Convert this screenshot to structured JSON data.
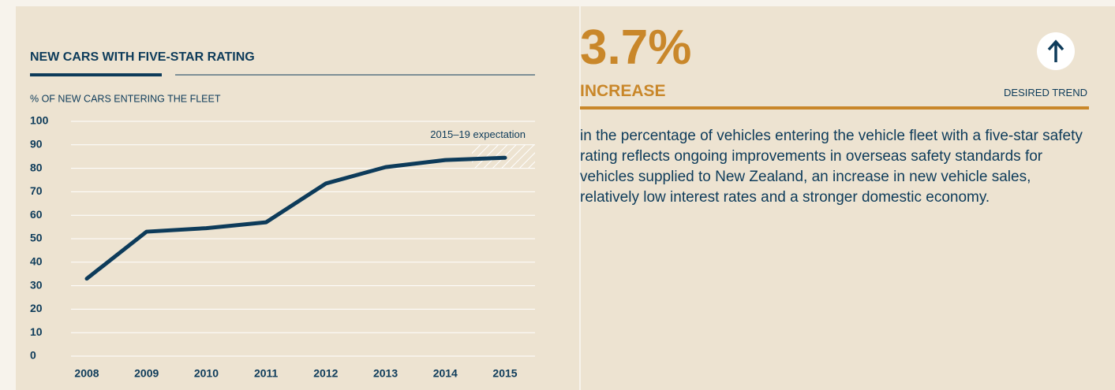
{
  "chart_data": {
    "type": "line",
    "title": "NEW CARS WITH FIVE-STAR RATING",
    "subtitle": "% OF NEW CARS ENTERING THE FLEET",
    "categories": [
      "2008",
      "2009",
      "2010",
      "2011",
      "2012",
      "2013",
      "2014",
      "2015"
    ],
    "values": [
      33,
      53,
      54.5,
      57,
      73.5,
      80.5,
      83.5,
      84.5
    ],
    "color": "#0d3b5a",
    "ylim": [
      0,
      100
    ],
    "yticks": [
      0,
      10,
      20,
      30,
      40,
      50,
      60,
      70,
      80,
      90,
      100
    ],
    "grid": true,
    "expectation": {
      "label": "2015–19 expectation",
      "range": [
        80,
        90
      ]
    }
  },
  "stat": {
    "value": "3.7%",
    "label": "INCREASE",
    "trend": "DESIRED TREND",
    "text": "in the percentage of vehicles entering the vehicle fleet with a five-star safety rating reflects ongoing improvements in overseas safety standards for vehicles supplied to New Zealand, an increase in new vehicle sales, relatively low interest rates and a stronger domestic economy."
  }
}
